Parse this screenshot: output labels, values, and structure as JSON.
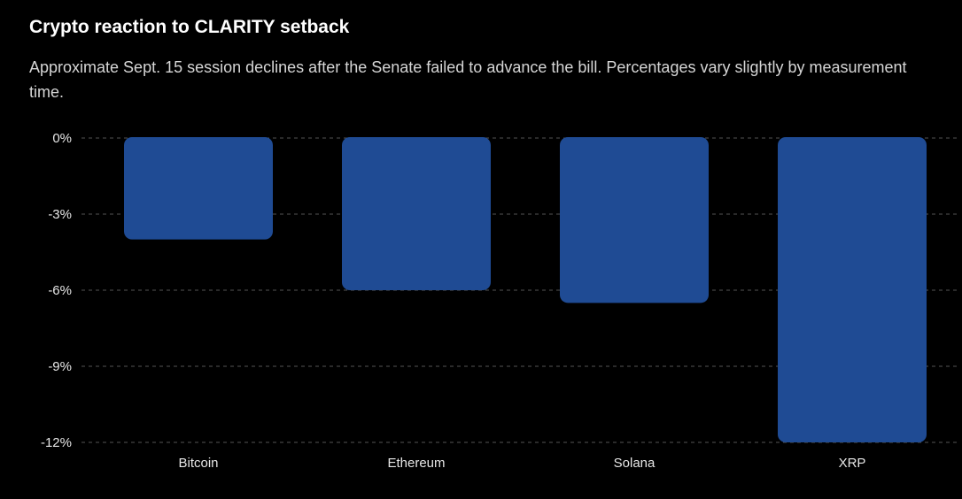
{
  "chart_data": {
    "type": "bar",
    "title": "Crypto reaction to CLARITY setback",
    "subtitle": "Approximate Sept. 15 session declines after the Senate failed to advance the bill. Percentages vary slightly by measurement time.",
    "categories": [
      "Bitcoin",
      "Ethereum",
      "Solana",
      "XRP"
    ],
    "values": [
      -4.0,
      -6.0,
      -6.5,
      -12.0
    ],
    "unit": "%",
    "ylim": [
      -12,
      0
    ],
    "yticks": [
      0,
      -3,
      -6,
      -9,
      -12
    ],
    "ytick_labels": [
      "0%",
      "-3%",
      "-6%",
      "-9%",
      "-12%"
    ],
    "xlabel": "",
    "ylabel": "",
    "grid": true,
    "legend": "none",
    "colors": {
      "bar": "#1f4b94",
      "grid": "#555555",
      "background": "#000000"
    }
  }
}
